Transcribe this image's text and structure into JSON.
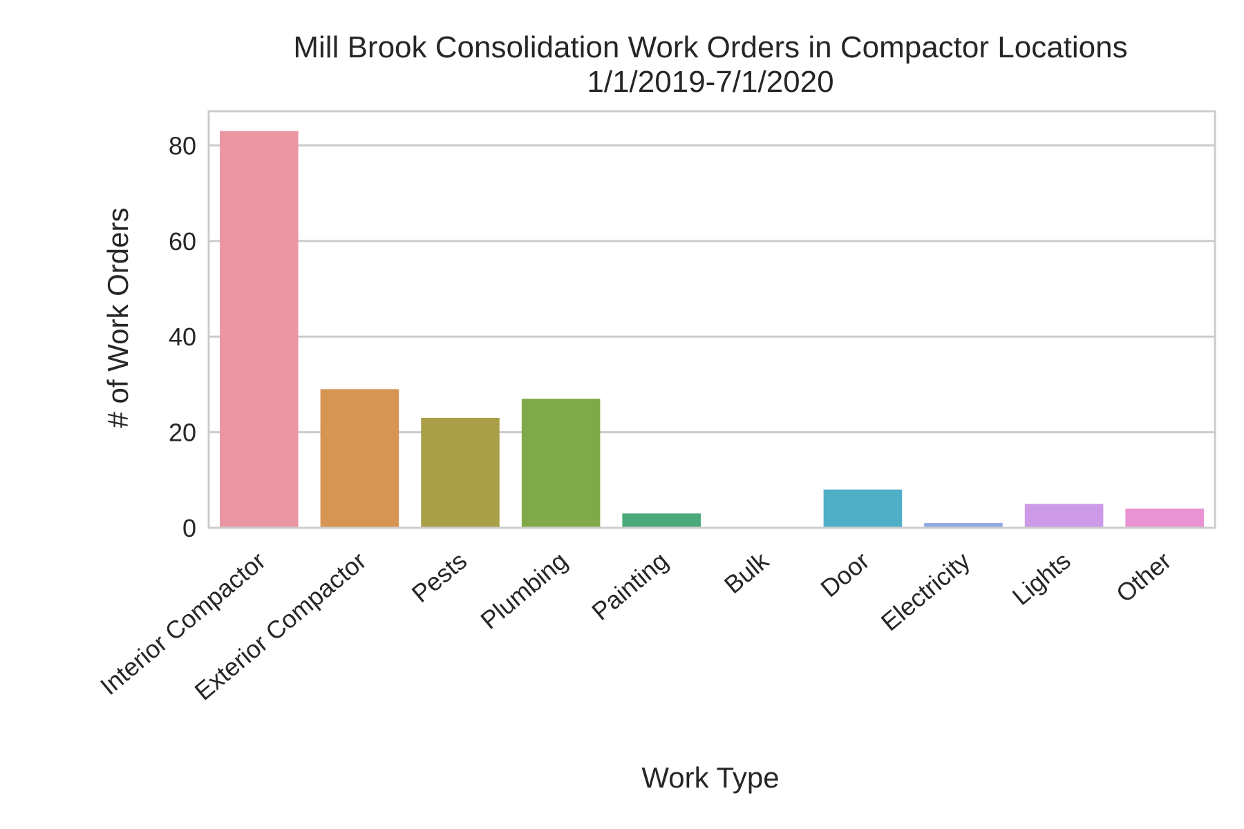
{
  "chart_data": {
    "type": "bar",
    "title": "Mill Brook Consolidation Work Orders in Compactor Locations",
    "subtitle": "1/1/2019-7/1/2020",
    "xlabel": "Work Type",
    "ylabel": "# of Work Orders",
    "categories": [
      "Interior Compactor",
      "Exterior Compactor",
      "Pests",
      "Plumbing",
      "Painting",
      "Bulk",
      "Door",
      "Electricity",
      "Lights",
      "Other"
    ],
    "values": [
      83,
      29,
      23,
      27,
      3,
      0,
      8,
      1,
      5,
      4
    ],
    "colors": [
      "#ea96a3",
      "#d69552",
      "#a99f49",
      "#80a949",
      "#4aaa7a",
      "#4ea98e",
      "#51aec7",
      "#8fa7e4",
      "#cd9ae7",
      "#ea93d3"
    ],
    "yticks": [
      0,
      20,
      40,
      60,
      80
    ],
    "ylim": [
      0,
      87.15
    ],
    "grid": true,
    "legend": "none"
  }
}
